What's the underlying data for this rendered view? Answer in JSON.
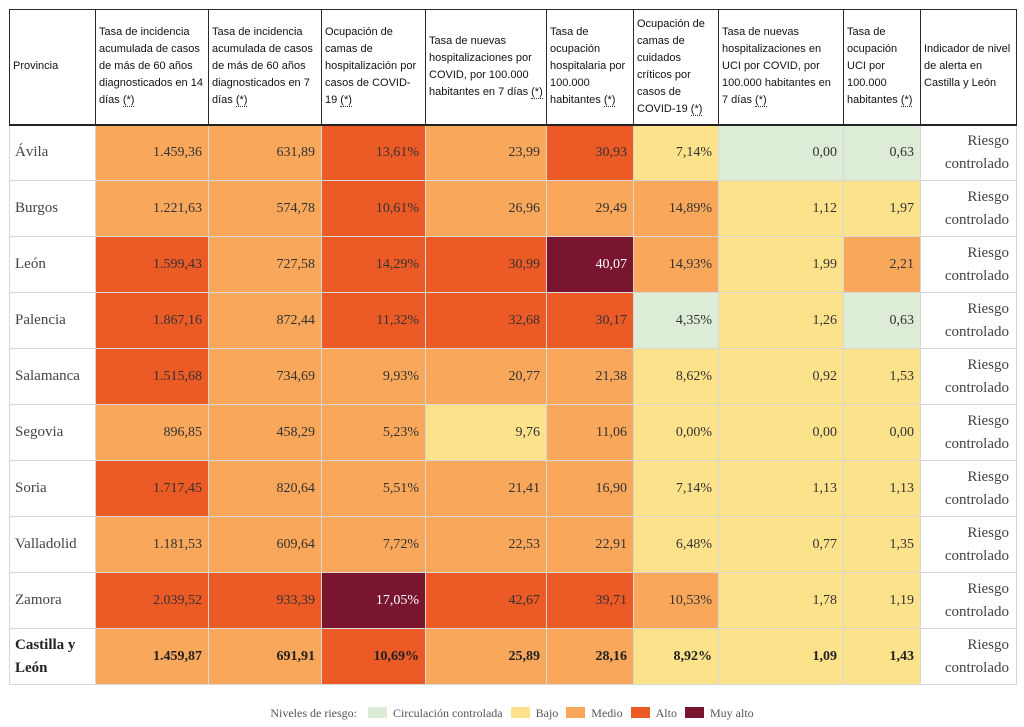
{
  "headers": [
    {
      "text": "Provincia",
      "star": ""
    },
    {
      "text": "Tasa de incidencia acumulada de casos de más de 60 años diagnosticados en 14 días ",
      "star": "(*)"
    },
    {
      "text": "Tasa de incidencia acumulada de casos de más de 60 años diagnosticados en 7 días ",
      "star": "(*)"
    },
    {
      "text": "Ocupación de camas de hospitalización por casos de COVID-19 ",
      "star": "(*)"
    },
    {
      "text": "Tasa de nuevas hospitalizaciones por COVID, por 100.000 habitantes en 7 días ",
      "star": "(*)"
    },
    {
      "text": "Tasa de ocupación hospitalaria por 100.000 habitantes ",
      "star": "(*)"
    },
    {
      "text": "Ocupación de camas de cuidados críticos por casos de COVID-19 ",
      "star": "(*)"
    },
    {
      "text": "Tasa de nuevas hospitalizaciones en UCI por COVID, por 100.000 habitantes en 7 días ",
      "star": "(*)"
    },
    {
      "text": "Tasa de ocupación UCI por 100.000 habitantes ",
      "star": "(*)"
    },
    {
      "text": "Indicador de nivel de alerta en Castilla y León",
      "star": ""
    }
  ],
  "rows": [
    {
      "provincia": "Ávila",
      "cells": [
        {
          "v": "1.459,36",
          "c": "o"
        },
        {
          "v": "631,89",
          "c": "o"
        },
        {
          "v": "13,61%",
          "c": "r"
        },
        {
          "v": "23,99",
          "c": "o"
        },
        {
          "v": "30,93",
          "c": "r"
        },
        {
          "v": "7,14%",
          "c": "y"
        },
        {
          "v": "0,00",
          "c": "g"
        },
        {
          "v": "0,63",
          "c": "g"
        }
      ],
      "alerta": "Riesgo controlado"
    },
    {
      "provincia": "Burgos",
      "cells": [
        {
          "v": "1.221,63",
          "c": "o"
        },
        {
          "v": "574,78",
          "c": "o"
        },
        {
          "v": "10,61%",
          "c": "r"
        },
        {
          "v": "26,96",
          "c": "o"
        },
        {
          "v": "29,49",
          "c": "o"
        },
        {
          "v": "14,89%",
          "c": "o"
        },
        {
          "v": "1,12",
          "c": "y"
        },
        {
          "v": "1,97",
          "c": "y"
        }
      ],
      "alerta": "Riesgo controlado"
    },
    {
      "provincia": "León",
      "cells": [
        {
          "v": "1.599,43",
          "c": "r"
        },
        {
          "v": "727,58",
          "c": "o"
        },
        {
          "v": "14,29%",
          "c": "r"
        },
        {
          "v": "30,99",
          "c": "r"
        },
        {
          "v": "40,07",
          "c": "m"
        },
        {
          "v": "14,93%",
          "c": "o"
        },
        {
          "v": "1,99",
          "c": "y"
        },
        {
          "v": "2,21",
          "c": "o"
        }
      ],
      "alerta": "Riesgo controlado"
    },
    {
      "provincia": "Palencia",
      "cells": [
        {
          "v": "1.867,16",
          "c": "r"
        },
        {
          "v": "872,44",
          "c": "o"
        },
        {
          "v": "11,32%",
          "c": "r"
        },
        {
          "v": "32,68",
          "c": "r"
        },
        {
          "v": "30,17",
          "c": "r"
        },
        {
          "v": "4,35%",
          "c": "g"
        },
        {
          "v": "1,26",
          "c": "y"
        },
        {
          "v": "0,63",
          "c": "g"
        }
      ],
      "alerta": "Riesgo controlado"
    },
    {
      "provincia": "Salamanca",
      "cells": [
        {
          "v": "1.515,68",
          "c": "r"
        },
        {
          "v": "734,69",
          "c": "o"
        },
        {
          "v": "9,93%",
          "c": "o"
        },
        {
          "v": "20,77",
          "c": "o"
        },
        {
          "v": "21,38",
          "c": "o"
        },
        {
          "v": "8,62%",
          "c": "y"
        },
        {
          "v": "0,92",
          "c": "y"
        },
        {
          "v": "1,53",
          "c": "y"
        }
      ],
      "alerta": "Riesgo controlado"
    },
    {
      "provincia": "Segovia",
      "cells": [
        {
          "v": "896,85",
          "c": "o"
        },
        {
          "v": "458,29",
          "c": "o"
        },
        {
          "v": "5,23%",
          "c": "o"
        },
        {
          "v": "9,76",
          "c": "y"
        },
        {
          "v": "11,06",
          "c": "o"
        },
        {
          "v": "0,00%",
          "c": "y"
        },
        {
          "v": "0,00",
          "c": "y"
        },
        {
          "v": "0,00",
          "c": "y"
        }
      ],
      "alerta": "Riesgo controlado"
    },
    {
      "provincia": "Soria",
      "cells": [
        {
          "v": "1.717,45",
          "c": "r"
        },
        {
          "v": "820,64",
          "c": "o"
        },
        {
          "v": "5,51%",
          "c": "o"
        },
        {
          "v": "21,41",
          "c": "o"
        },
        {
          "v": "16,90",
          "c": "o"
        },
        {
          "v": "7,14%",
          "c": "y"
        },
        {
          "v": "1,13",
          "c": "y"
        },
        {
          "v": "1,13",
          "c": "y"
        }
      ],
      "alerta": "Riesgo controlado"
    },
    {
      "provincia": "Valladolid",
      "cells": [
        {
          "v": "1.181,53",
          "c": "o"
        },
        {
          "v": "609,64",
          "c": "o"
        },
        {
          "v": "7,72%",
          "c": "o"
        },
        {
          "v": "22,53",
          "c": "o"
        },
        {
          "v": "22,91",
          "c": "o"
        },
        {
          "v": "6,48%",
          "c": "y"
        },
        {
          "v": "0,77",
          "c": "y"
        },
        {
          "v": "1,35",
          "c": "y"
        }
      ],
      "alerta": "Riesgo controlado"
    },
    {
      "provincia": "Zamora",
      "cells": [
        {
          "v": "2.039,52",
          "c": "r"
        },
        {
          "v": "933,39",
          "c": "r"
        },
        {
          "v": "17,05%",
          "c": "m"
        },
        {
          "v": "42,67",
          "c": "r"
        },
        {
          "v": "39,71",
          "c": "r"
        },
        {
          "v": "10,53%",
          "c": "o"
        },
        {
          "v": "1,78",
          "c": "y"
        },
        {
          "v": "1,19",
          "c": "y"
        }
      ],
      "alerta": "Riesgo controlado"
    },
    {
      "provincia": "Castilla y León",
      "total": true,
      "cells": [
        {
          "v": "1.459,87",
          "c": "o"
        },
        {
          "v": "691,91",
          "c": "o"
        },
        {
          "v": "10,69%",
          "c": "r"
        },
        {
          "v": "25,89",
          "c": "o"
        },
        {
          "v": "28,16",
          "c": "o"
        },
        {
          "v": "8,92%",
          "c": "y"
        },
        {
          "v": "1,09",
          "c": "y"
        },
        {
          "v": "1,43",
          "c": "y"
        }
      ],
      "alerta": "Riesgo controlado"
    }
  ],
  "legend": {
    "label": "Niveles de riesgo:",
    "items": [
      {
        "label": "Circulación controlada",
        "color": "#dcecd6"
      },
      {
        "label": "Bajo",
        "color": "#fde28c"
      },
      {
        "label": "Medio",
        "color": "#f9a75b"
      },
      {
        "label": "Alto",
        "color": "#ec5a26"
      },
      {
        "label": "Muy alto",
        "color": "#7a1530"
      }
    ]
  }
}
